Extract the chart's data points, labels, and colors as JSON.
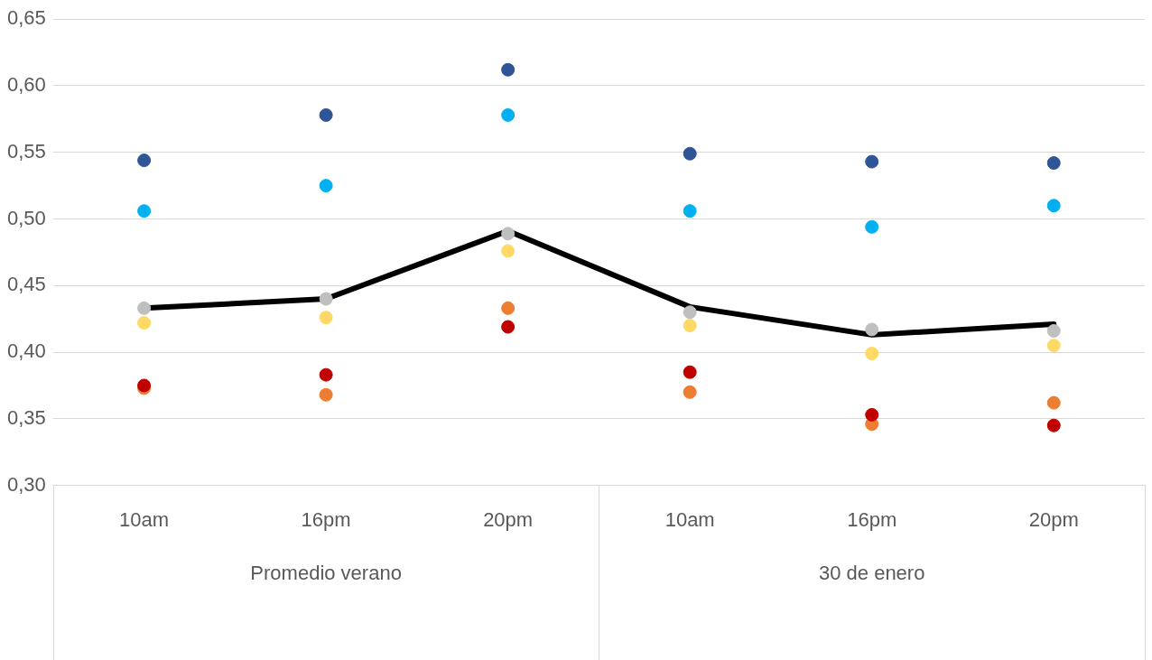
{
  "chart_data": {
    "type": "scatter",
    "categories": [
      "10am",
      "16pm",
      "20pm",
      "10am",
      "16pm",
      "20pm"
    ],
    "annotations": [
      "Promedio verano",
      "30 de enero"
    ],
    "ylim": [
      0.3,
      0.65
    ],
    "yticks": [
      {
        "value": 0.3,
        "label": "0,30"
      },
      {
        "value": 0.35,
        "label": "0,35"
      },
      {
        "value": 0.4,
        "label": "0,40"
      },
      {
        "value": 0.45,
        "label": "0,45"
      },
      {
        "value": 0.5,
        "label": "0,50"
      },
      {
        "value": 0.55,
        "label": "0,55"
      },
      {
        "value": 0.6,
        "label": "0,60"
      },
      {
        "value": 0.65,
        "label": "0,65"
      }
    ],
    "grid": "y",
    "legend": false,
    "marker": "circle",
    "series": [
      {
        "type": "line",
        "marker": "none",
        "color": "#000000",
        "values": [
          0.433,
          0.44,
          0.491,
          0.434,
          0.413,
          0.421
        ]
      },
      {
        "color": "#2f5597",
        "values": [
          0.544,
          0.578,
          0.612,
          0.549,
          0.543,
          0.542
        ]
      },
      {
        "color": "#00b0f0",
        "values": [
          0.506,
          0.525,
          0.578,
          0.506,
          0.494,
          0.51
        ]
      },
      {
        "color": "#bfbfbf",
        "values": [
          0.433,
          0.44,
          0.489,
          0.43,
          0.417,
          0.416
        ]
      },
      {
        "color": "#ffd966",
        "values": [
          0.422,
          0.426,
          0.476,
          0.42,
          0.399,
          0.405
        ]
      },
      {
        "color": "#ed7d31",
        "values": [
          0.373,
          0.368,
          0.433,
          0.37,
          0.346,
          0.362
        ]
      },
      {
        "color": "#c00000",
        "values": [
          0.375,
          0.383,
          0.419,
          0.385,
          0.353,
          0.345
        ]
      }
    ]
  }
}
